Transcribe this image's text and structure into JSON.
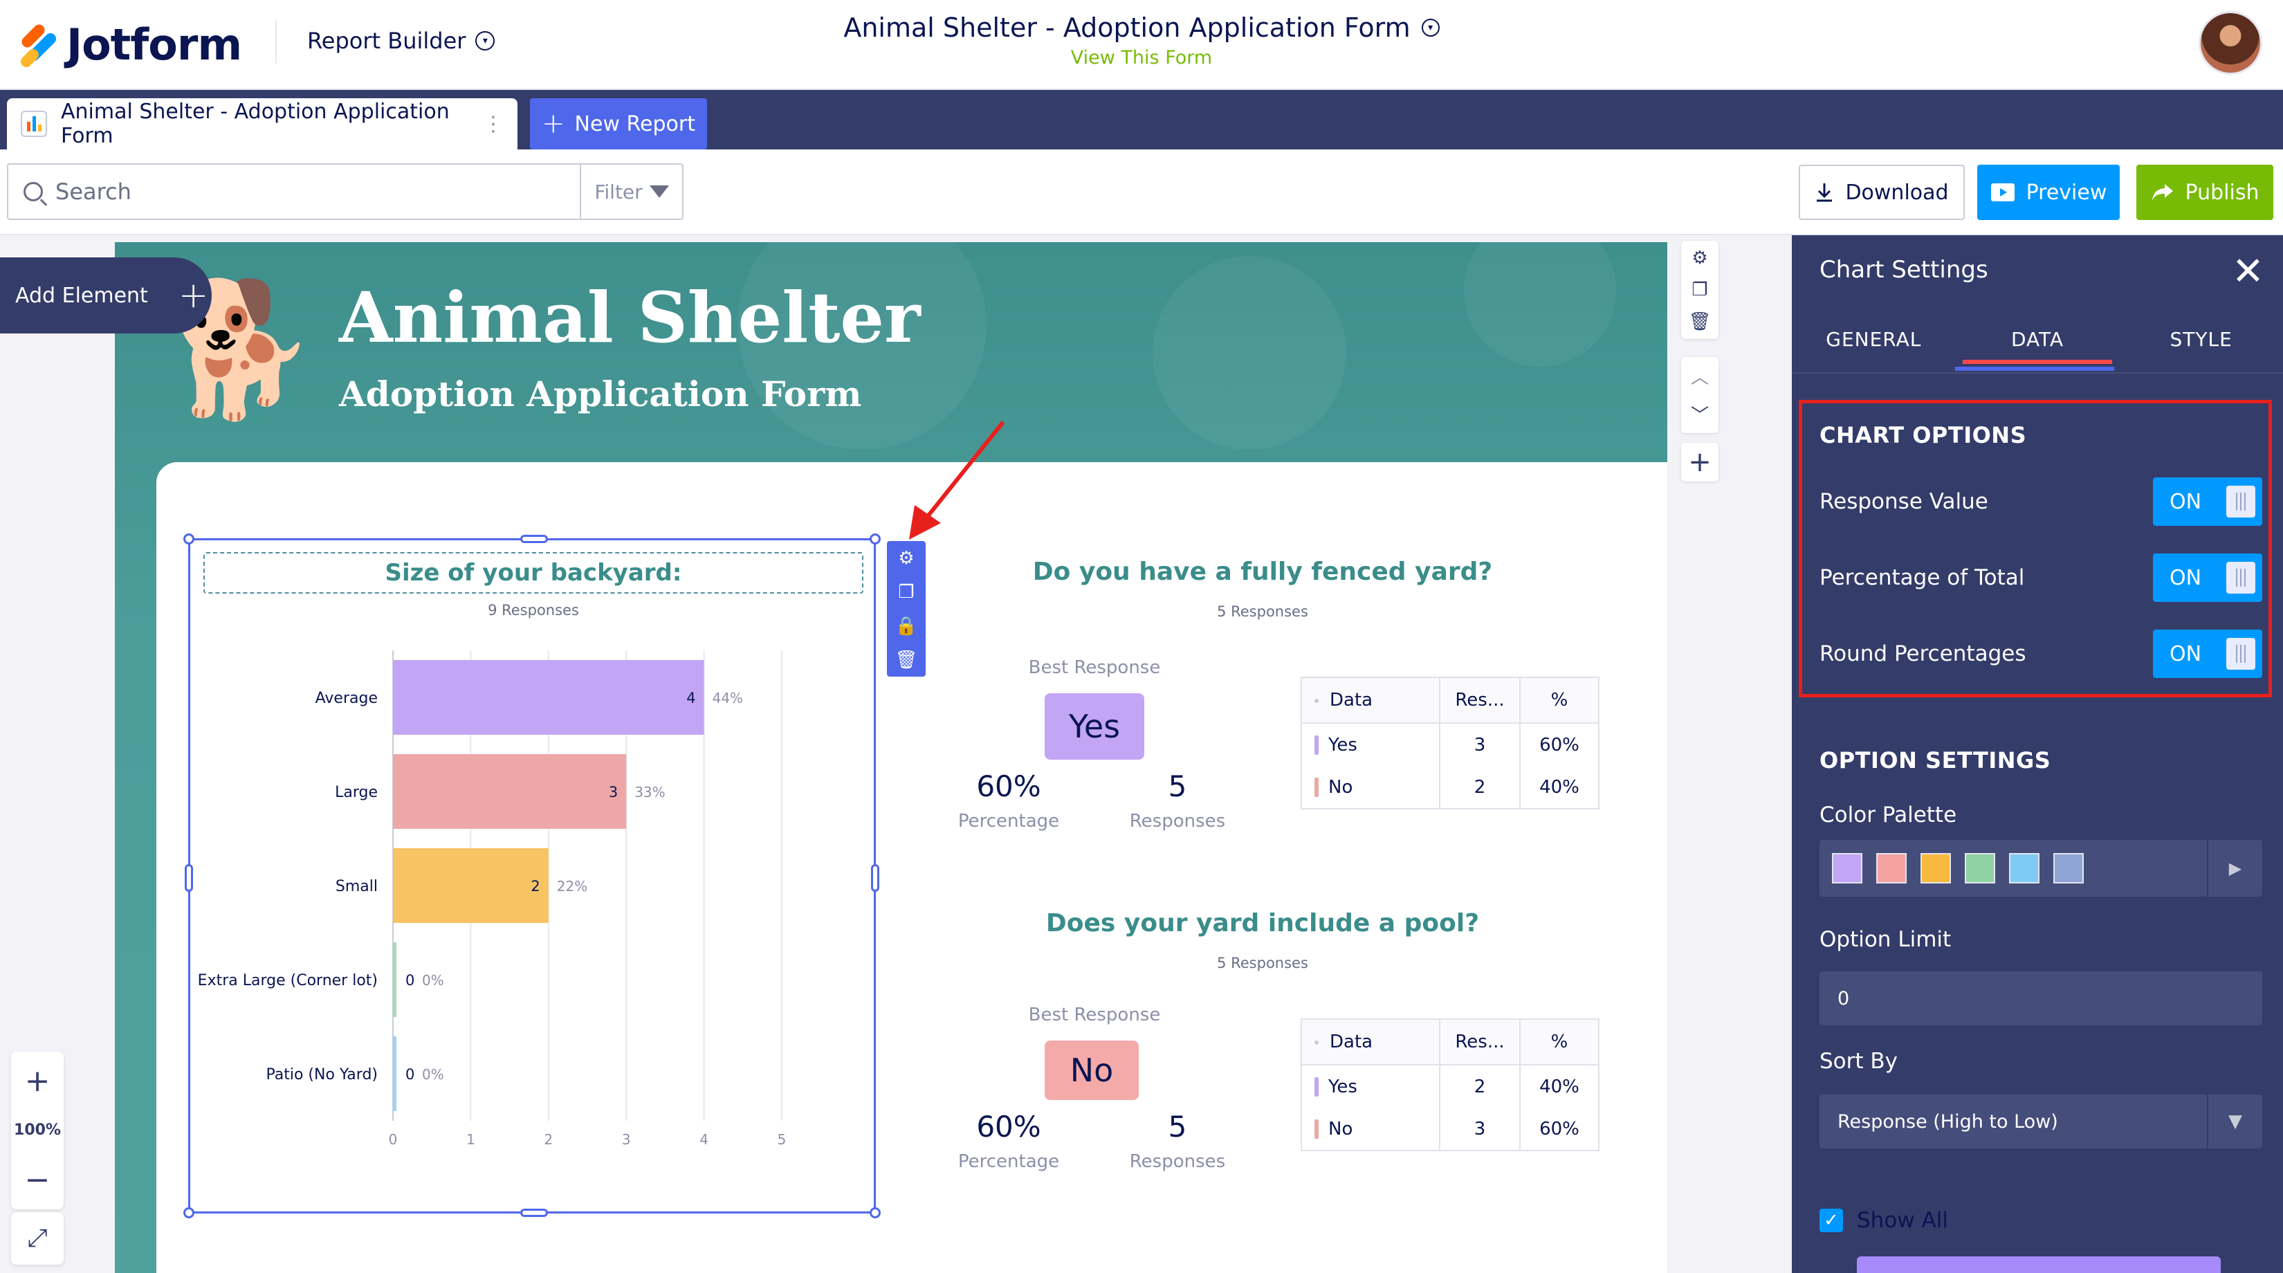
{
  "header": {
    "brand": "Jotform",
    "menu_label": "Report Builder",
    "form_title": "Animal Shelter - Adoption Application Form",
    "view_form_link": "View This Form"
  },
  "tabs": {
    "active_label": "Animal Shelter - Adoption Application Form",
    "new_report_label": "New Report"
  },
  "toolbar": {
    "search_placeholder": "Search",
    "filter_label": "Filter",
    "download_label": "Download",
    "preview_label": "Preview",
    "publish_label": "Publish"
  },
  "canvas": {
    "add_element_label": "Add Element",
    "zoom_level": "100%",
    "hero_title": "Animal Shelter",
    "hero_subtitle": "Adoption Application Form"
  },
  "bar_chart": {
    "title": "Size of your backyard:",
    "responses": "9 Responses"
  },
  "chart_data": {
    "type": "bar",
    "orientation": "horizontal",
    "title": "Size of your backyard:",
    "categories": [
      "Average",
      "Large",
      "Small",
      "Extra Large (Corner lot)",
      "Patio (No Yard)"
    ],
    "values": [
      4,
      3,
      2,
      0,
      0
    ],
    "percent_labels": [
      "44%",
      "33%",
      "22%",
      "0%",
      "0%"
    ],
    "colors": [
      "#c3a5f5",
      "#eea7a7",
      "#f7c363",
      "#a5ddb3",
      "#9fd2f5"
    ],
    "xlim": [
      0,
      5
    ],
    "xticks": [
      "0",
      "1",
      "2",
      "3",
      "4",
      "5"
    ],
    "grid": true,
    "legend": "none"
  },
  "question1": {
    "title": "Do you have a fully fenced yard?",
    "responses": "5 Responses",
    "best_label": "Best Response",
    "best_value": "Yes",
    "best_color": "#c3a5f5",
    "percentage": "60%",
    "percentage_label": "Percentage",
    "count": "5",
    "count_label": "Responses",
    "table_headers": [
      "Data",
      "Res...",
      "%"
    ],
    "rows": [
      {
        "label": "Yes",
        "count": "3",
        "pct": "60%",
        "color": "#c3a5f5"
      },
      {
        "label": "No",
        "count": "2",
        "pct": "40%",
        "color": "#eea7a7"
      }
    ]
  },
  "question2": {
    "title": "Does your yard include a pool?",
    "responses": "5 Responses",
    "best_label": "Best Response",
    "best_value": "No",
    "best_color": "#f5aaaa",
    "percentage": "60%",
    "percentage_label": "Percentage",
    "count": "5",
    "count_label": "Responses",
    "table_headers": [
      "Data",
      "Res...",
      "%"
    ],
    "rows": [
      {
        "label": "Yes",
        "count": "2",
        "pct": "40%",
        "color": "#c3a5f5"
      },
      {
        "label": "No",
        "count": "3",
        "pct": "60%",
        "color": "#eea7a7"
      }
    ]
  },
  "panel": {
    "title": "Chart Settings",
    "tabs": [
      "GENERAL",
      "DATA",
      "STYLE"
    ],
    "active_tab": "DATA",
    "chart_options_title": "CHART OPTIONS",
    "chart_options": [
      {
        "label": "Response Value",
        "state": "ON"
      },
      {
        "label": "Percentage of Total",
        "state": "ON"
      },
      {
        "label": "Round Percentages",
        "state": "ON"
      }
    ],
    "option_settings_title": "OPTION SETTINGS",
    "color_palette_label": "Color Palette",
    "palette_colors": [
      "#c3a5f5",
      "#f4a3a3",
      "#f7b93e",
      "#8fd3a3",
      "#7fcbf5",
      "#8ea5d6"
    ],
    "option_limit_label": "Option Limit",
    "option_limit_value": "0",
    "sort_by_label": "Sort By",
    "sort_by_value": "Response (High to Low)",
    "show_all_label": "Show All"
  },
  "colors": {
    "accent": "#4f67ea",
    "panel_bg": "#343c6a",
    "preview": "#0099ff",
    "publish": "#78bb07",
    "highlight": "#e8201c"
  }
}
